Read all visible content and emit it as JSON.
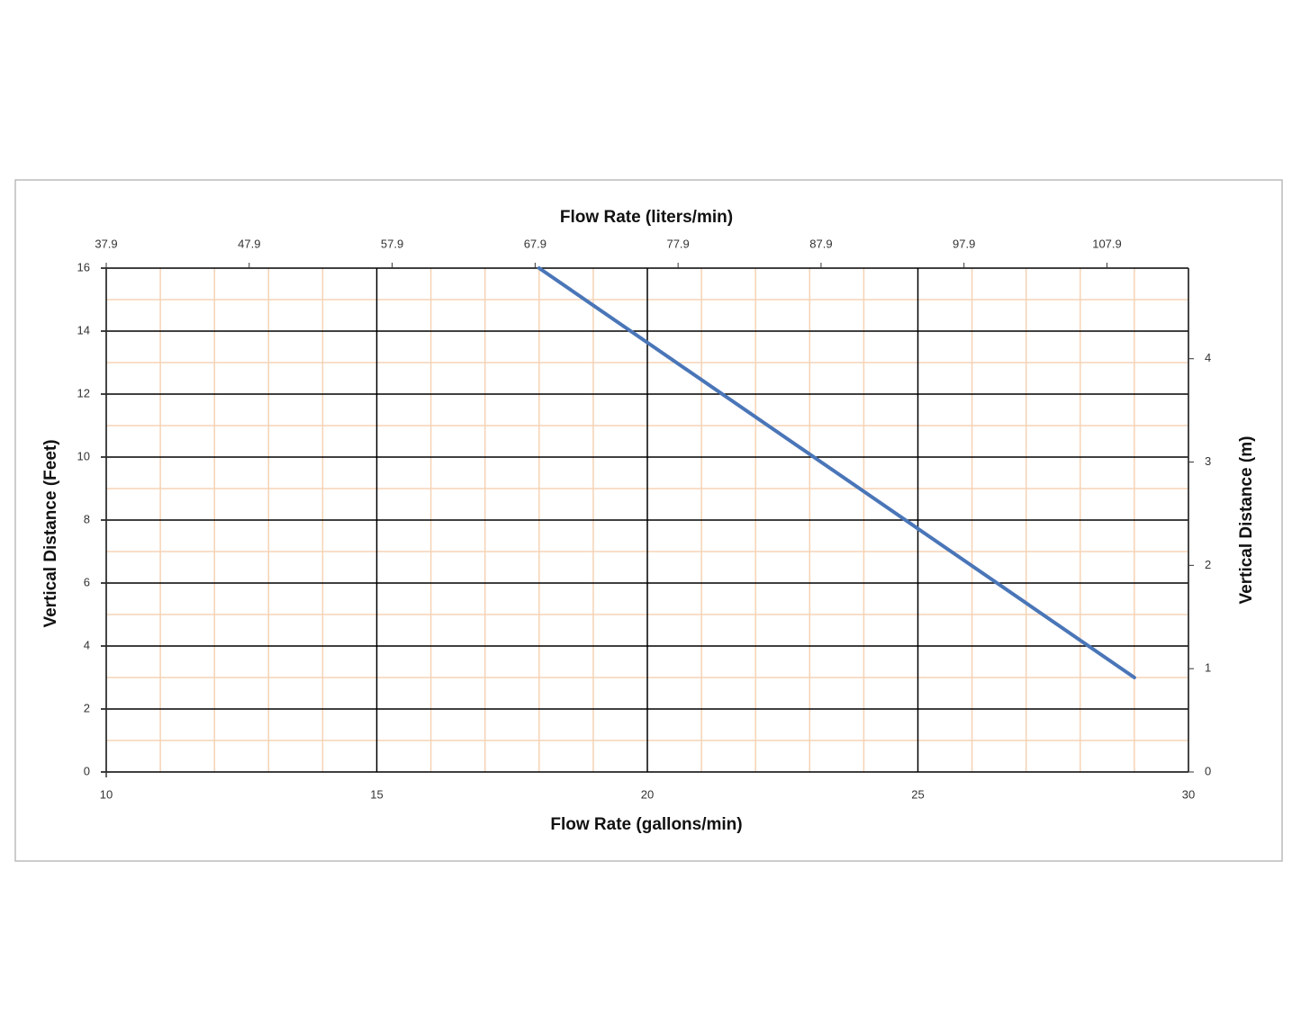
{
  "chart_data": {
    "type": "line",
    "x_title": "Flow Rate (gallons/min)",
    "x2_title": "Flow Rate (liters/min)",
    "y_title": "Vertical Distance (Feet)",
    "y2_title": "Vertical Distance (m)",
    "xlim": [
      10,
      30
    ],
    "xticks": [
      10,
      15,
      20,
      25,
      30
    ],
    "x2lim": [
      37.9,
      113.6
    ],
    "x2ticks": [
      37.9,
      47.9,
      57.9,
      67.9,
      77.9,
      87.9,
      97.9,
      107.9
    ],
    "ylim": [
      0,
      16
    ],
    "yticks": [
      0,
      2,
      4,
      6,
      8,
      10,
      12,
      14,
      16
    ],
    "y2lim": [
      0,
      4.877
    ],
    "y2ticks": [
      0,
      1,
      2,
      3,
      4
    ],
    "grid": true,
    "minor_grid": true,
    "minor_grid_color": "#f5d3b5",
    "grid_color": "#000000",
    "series": [
      {
        "color": "#4a76b8",
        "x": [
          18,
          29
        ],
        "values": [
          16,
          3
        ]
      }
    ]
  }
}
